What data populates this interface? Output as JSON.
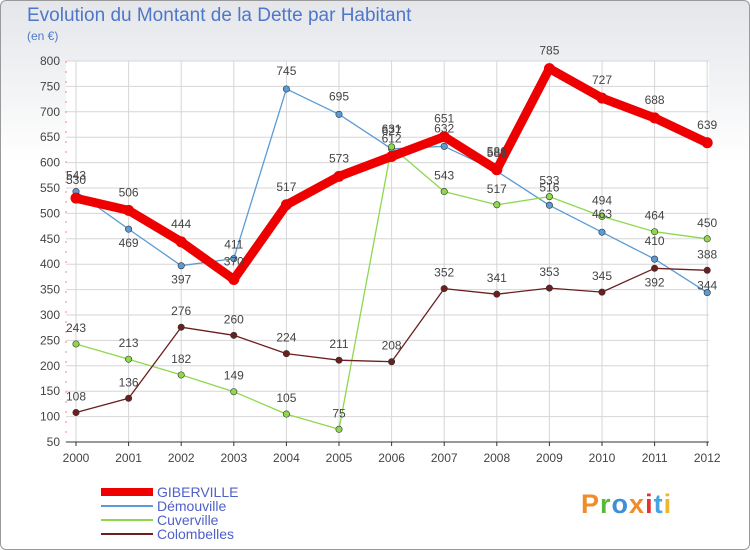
{
  "chart_data": {
    "type": "line",
    "title": "Evolution du Montant de la Dette par Habitant",
    "subtitle": "(en €)",
    "xlabel": "",
    "ylabel": "",
    "x": [
      "2000",
      "2001",
      "2002",
      "2003",
      "2004",
      "2005",
      "2006",
      "2007",
      "2008",
      "2009",
      "2010",
      "2011",
      "2012"
    ],
    "ylim": [
      50,
      800
    ],
    "yticks": [
      "50",
      "100",
      "150",
      "200",
      "250",
      "300",
      "350",
      "400",
      "450",
      "500",
      "550",
      "600",
      "650",
      "700",
      "750",
      "800"
    ],
    "grid": true,
    "legend_position": "bottom-left",
    "series": [
      {
        "name": "Démouville",
        "color": "#5b9bd5",
        "values": [
          543,
          469,
          397,
          411,
          745,
          695,
          627,
          632,
          583,
          516,
          463,
          410,
          344
        ],
        "labels": [
          "543",
          "469",
          "397",
          "411",
          "745",
          "695",
          "627",
          "632",
          "583",
          "516",
          "463",
          "410",
          "344"
        ]
      },
      {
        "name": "Cuverville",
        "color": "#8ed84e",
        "values": [
          243,
          213,
          182,
          149,
          105,
          75,
          631,
          543,
          517,
          533,
          494,
          464,
          450
        ],
        "labels": [
          "243",
          "213",
          "182",
          "149",
          "105",
          "75",
          "631",
          "543",
          "517",
          "533",
          "494",
          "464",
          "450"
        ]
      },
      {
        "name": "Colombelles",
        "color": "#6b1f1f",
        "values": [
          108,
          136,
          276,
          260,
          224,
          211,
          208,
          352,
          341,
          353,
          345,
          392,
          388
        ],
        "labels": [
          "108",
          "136",
          "276",
          "260",
          "224",
          "211",
          "208",
          "352",
          "341",
          "353",
          "345",
          "392",
          "388"
        ]
      },
      {
        "name": "GIBERVILLE",
        "color": "#ee0000",
        "values": [
          530,
          506,
          444,
          370,
          517,
          573,
          612,
          651,
          586,
          785,
          727,
          688,
          639
        ],
        "labels": [
          "530",
          "506",
          "444",
          "370",
          "517",
          "573",
          "612",
          "651",
          "586",
          "785",
          "727",
          "688",
          "639"
        ]
      }
    ]
  },
  "legend": {
    "items": [
      "GIBERVILLE",
      "Démouville",
      "Cuverville",
      "Colombelles"
    ]
  },
  "logo": {
    "text": "Proxiti",
    "colors": [
      "#f08c2a",
      "#56b93a",
      "#3f8fd6",
      "#f08c2a",
      "#e5322d",
      "#4aa3df",
      "#f0b52a"
    ]
  }
}
